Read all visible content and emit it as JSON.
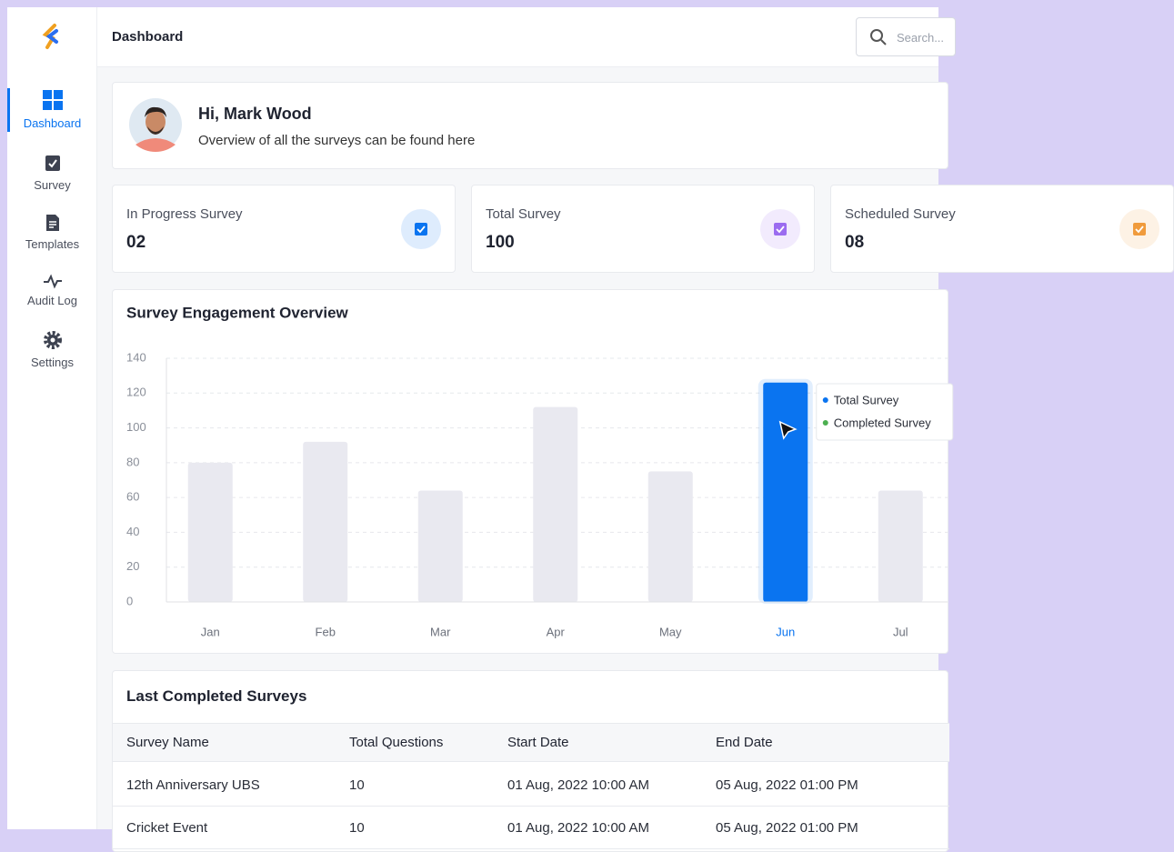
{
  "header": {
    "title": "Dashboard",
    "search_placeholder": "Search..."
  },
  "sidebar": {
    "nav": [
      {
        "label": "Dashboard",
        "active": true
      },
      {
        "label": "Survey",
        "active": false
      },
      {
        "label": "Templates",
        "active": false
      },
      {
        "label": "Audit Log",
        "active": false
      },
      {
        "label": "Settings",
        "active": false
      }
    ]
  },
  "greeting": {
    "title": "Hi, Mark Wood",
    "subtitle": "Overview of all the surveys can be found here"
  },
  "stats": [
    {
      "label": "In Progress Survey",
      "value": "02",
      "color": "#0a74f0"
    },
    {
      "label": "Total Survey",
      "value": "100",
      "color": "#9b6cf0"
    },
    {
      "label": "Scheduled Survey",
      "value": "08",
      "color": "#f09b3c"
    }
  ],
  "chart_data": {
    "type": "bar",
    "title": "Survey Engagement Overview",
    "categories": [
      "Jan",
      "Feb",
      "Mar",
      "Apr",
      "May",
      "Jun",
      "Jul"
    ],
    "values": [
      80,
      92,
      64,
      112,
      75,
      126,
      64
    ],
    "color": "#e9e9f0",
    "highlight": 5,
    "highlight_color": "#0a74f0",
    "ylim": [
      0,
      140
    ],
    "yticks": [
      0,
      20,
      40,
      60,
      80,
      100,
      120,
      140
    ],
    "grid": true,
    "tooltip": [
      {
        "name": "Total Survey",
        "color": "#0a74f0"
      },
      {
        "name": "Completed Survey",
        "color": "#4caf50"
      }
    ]
  },
  "table": {
    "title": "Last Completed Surveys",
    "columns": [
      "Survey Name",
      "Total Questions",
      "Start Date",
      "End Date"
    ],
    "rows": [
      [
        "12th Anniversary UBS",
        "10",
        "01 Aug, 2022 10:00 AM",
        "05 Aug, 2022 01:00 PM"
      ],
      [
        "Cricket Event",
        "10",
        "01 Aug, 2022 10:00 AM",
        "05 Aug, 2022 01:00 PM"
      ]
    ]
  }
}
